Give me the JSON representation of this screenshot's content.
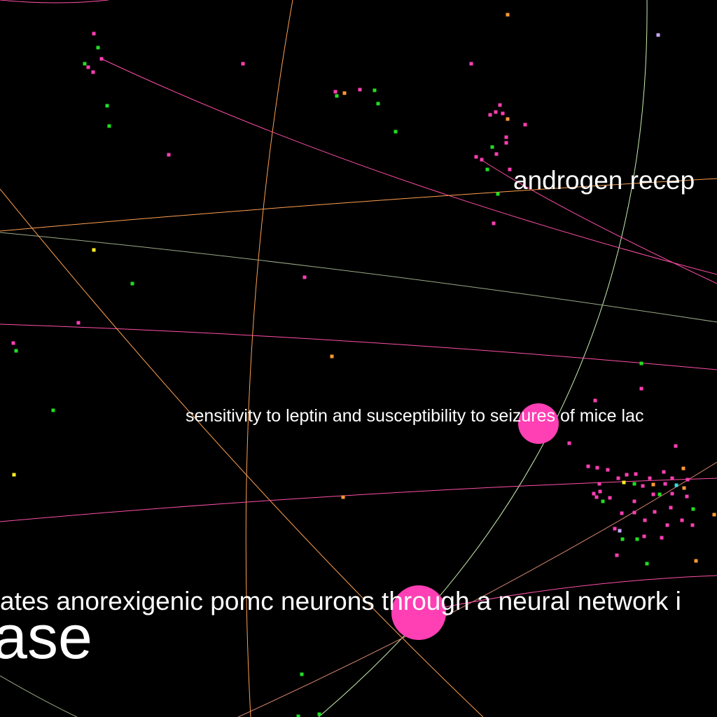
{
  "graph": {
    "background_color": "#000000",
    "labels": [
      {
        "id": "label-androgen",
        "text": "androgen recep"
      },
      {
        "id": "label-leptin",
        "text": "sensitivity to leptin and susceptibility to seizures of mice lac"
      },
      {
        "id": "label-pomc",
        "text": "ates anorexigenic pomc neurons through a neural network i"
      },
      {
        "id": "label-ase",
        "text": "ase"
      }
    ],
    "node_colors": {
      "magenta": "#ff3fb4",
      "green": "#22dd22",
      "orange": "#ff9933",
      "yellow": "#ffee22",
      "lavender": "#c8a8ff",
      "cyan": "#33dddd"
    },
    "edge_colors": {
      "magenta": "#ff4fa8",
      "orange": "#ffa050",
      "light_green": "#c8f0b0",
      "grey_green": "#9aaa88",
      "mixed": "#d88870"
    }
  }
}
